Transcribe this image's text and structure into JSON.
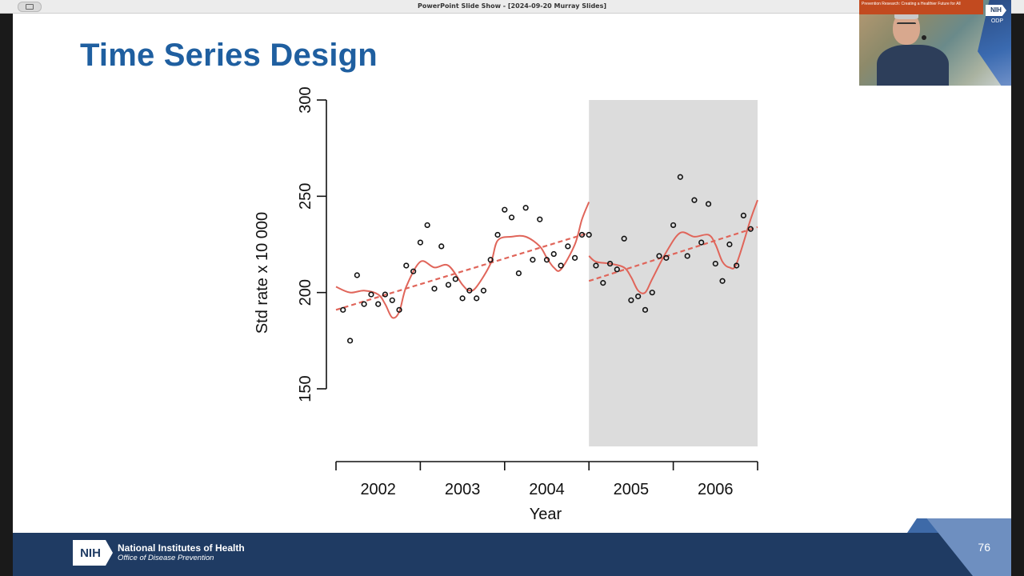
{
  "window": {
    "title": "PowerPoint Slide Show - [2024-09-20 Murray Slides]"
  },
  "slide": {
    "title": "Time Series Design",
    "number": "76"
  },
  "footer": {
    "org_name": "National Institutes of Health",
    "org_sub": "Office of Disease Prevention",
    "logo": "NIH"
  },
  "video": {
    "banner": "Prevention Research: Creating a Healthier Future for All",
    "logo": "NIH",
    "org": "ODP"
  },
  "colors": {
    "title": "#1f5fa0",
    "footer": "#1f3b63",
    "fit_line": "#e0655a",
    "shade": "#dcdcdc"
  },
  "chart_data": {
    "type": "scatter",
    "xlabel": "Year",
    "ylabel": "Std rate x 10 000",
    "ylim": [
      150,
      300
    ],
    "yticks": [
      "150",
      "200",
      "250",
      "300"
    ],
    "xlim": [
      2001.5,
      2006.5
    ],
    "xticks": [
      "2002",
      "2003",
      "2004",
      "2005",
      "2006"
    ],
    "intervention_start": 2004.5,
    "shaded_region": [
      2004.5,
      2006.5
    ],
    "points": [
      [
        2001.583,
        191
      ],
      [
        2001.667,
        175
      ],
      [
        2001.75,
        209
      ],
      [
        2001.833,
        194
      ],
      [
        2001.917,
        199
      ],
      [
        2002.0,
        194
      ],
      [
        2002.083,
        199
      ],
      [
        2002.167,
        196
      ],
      [
        2002.25,
        191
      ],
      [
        2002.333,
        214
      ],
      [
        2002.417,
        211
      ],
      [
        2002.5,
        226
      ],
      [
        2002.583,
        235
      ],
      [
        2002.667,
        202
      ],
      [
        2002.75,
        224
      ],
      [
        2002.833,
        204
      ],
      [
        2002.917,
        207
      ],
      [
        2003.0,
        197
      ],
      [
        2003.083,
        201
      ],
      [
        2003.167,
        197
      ],
      [
        2003.25,
        201
      ],
      [
        2003.333,
        217
      ],
      [
        2003.417,
        230
      ],
      [
        2003.5,
        243
      ],
      [
        2003.583,
        239
      ],
      [
        2003.667,
        210
      ],
      [
        2003.75,
        244
      ],
      [
        2003.833,
        217
      ],
      [
        2003.917,
        238
      ],
      [
        2004.0,
        217
      ],
      [
        2004.083,
        220
      ],
      [
        2004.167,
        214
      ],
      [
        2004.25,
        224
      ],
      [
        2004.333,
        218
      ],
      [
        2004.417,
        230
      ],
      [
        2004.5,
        230
      ],
      [
        2004.583,
        214
      ],
      [
        2004.667,
        205
      ],
      [
        2004.75,
        215
      ],
      [
        2004.833,
        212
      ],
      [
        2004.917,
        228
      ],
      [
        2005.0,
        196
      ],
      [
        2005.083,
        198
      ],
      [
        2005.167,
        191
      ],
      [
        2005.25,
        200
      ],
      [
        2005.333,
        219
      ],
      [
        2005.417,
        218
      ],
      [
        2005.5,
        235
      ],
      [
        2005.583,
        260
      ],
      [
        2005.667,
        219
      ],
      [
        2005.75,
        248
      ],
      [
        2005.833,
        226
      ],
      [
        2005.917,
        246
      ],
      [
        2006.0,
        215
      ],
      [
        2006.083,
        206
      ],
      [
        2006.167,
        225
      ],
      [
        2006.25,
        214
      ],
      [
        2006.333,
        240
      ],
      [
        2006.417,
        233
      ]
    ],
    "trend_pre": {
      "x": [
        2001.5,
        2004.5
      ],
      "y": [
        191,
        231
      ]
    },
    "trend_post": {
      "x": [
        2004.5,
        2006.5
      ],
      "y": [
        206,
        234
      ]
    },
    "smooth_pre": {
      "x": [
        2001.5,
        2001.667,
        2001.833,
        2002.0,
        2002.083,
        2002.167,
        2002.25,
        2002.333,
        2002.5,
        2002.667,
        2002.833,
        2003.0,
        2003.083,
        2003.167,
        2003.333,
        2003.417,
        2003.583,
        2003.75,
        2003.917,
        2004.0,
        2004.083,
        2004.167,
        2004.333,
        2004.417,
        2004.5
      ],
      "y": [
        203,
        200,
        201,
        199,
        194,
        187,
        190,
        203,
        216,
        213,
        214,
        204,
        201,
        203,
        215,
        227,
        229,
        229,
        224,
        218,
        213,
        212,
        225,
        238,
        247
      ]
    },
    "smooth_post": {
      "x": [
        2004.5,
        2004.583,
        2004.75,
        2004.917,
        2005.0,
        2005.083,
        2005.167,
        2005.25,
        2005.417,
        2005.583,
        2005.75,
        2005.917,
        2006.0,
        2006.083,
        2006.167,
        2006.25,
        2006.417,
        2006.5
      ],
      "y": [
        219,
        216,
        215,
        213,
        208,
        201,
        200,
        207,
        221,
        231,
        229,
        230,
        225,
        216,
        213,
        215,
        238,
        248
      ]
    }
  }
}
